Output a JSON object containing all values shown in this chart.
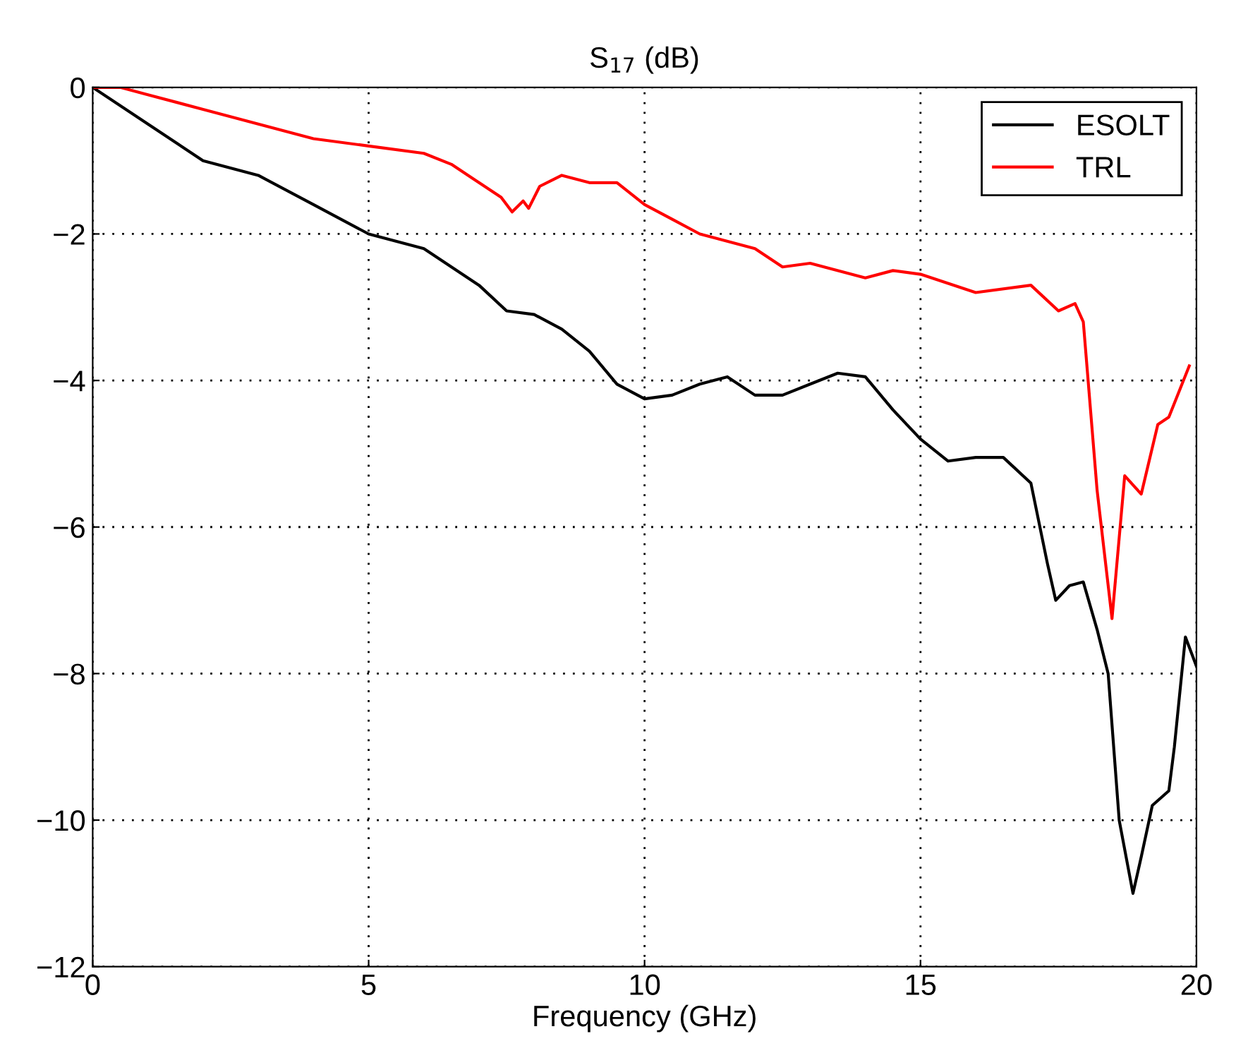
{
  "chart_data": {
    "type": "line",
    "title": "S$_{17}$ (dB)",
    "xlabel": "Frequency (GHz)",
    "xlim": [
      0,
      20
    ],
    "xticks": [
      0,
      5,
      10,
      15,
      20
    ],
    "ylim": [
      -12,
      0
    ],
    "yticks": [
      -12,
      -10,
      -8,
      -6,
      -4,
      -2,
      0
    ],
    "grid": true,
    "legend": "top right",
    "line_style": "solid",
    "marker": "none",
    "series": [
      {
        "name": "ESOLT",
        "color": "#000000",
        "x": [
          0,
          1,
          2,
          3,
          4,
          5,
          6,
          7,
          7.5,
          8,
          8.5,
          9,
          9.5,
          10,
          10.5,
          11,
          11.5,
          12,
          12.5,
          13,
          13.5,
          14,
          14.5,
          15,
          15.5,
          16,
          16.5,
          17,
          17.3,
          17.45,
          17.7,
          17.95,
          18.2,
          18.4,
          18.6,
          18.85,
          19.0,
          19.2,
          19.5,
          19.6,
          19.8,
          20
        ],
        "values": [
          0,
          -0.5,
          -1.0,
          -1.2,
          -1.6,
          -2.0,
          -2.2,
          -2.7,
          -3.05,
          -3.1,
          -3.3,
          -3.6,
          -4.05,
          -4.25,
          -4.2,
          -4.05,
          -3.95,
          -4.2,
          -4.2,
          -4.05,
          -3.9,
          -3.95,
          -4.4,
          -4.8,
          -5.1,
          -5.05,
          -5.05,
          -5.4,
          -6.5,
          -7.0,
          -6.8,
          -6.75,
          -7.4,
          -8.0,
          -10.0,
          -11.0,
          -10.5,
          -9.8,
          -9.6,
          -9.0,
          -7.5,
          -7.9
        ]
      },
      {
        "name": "TRL",
        "color": "#ff0000",
        "x": [
          0,
          0.5,
          1,
          2,
          3,
          4,
          5,
          6,
          6.5,
          7,
          7.4,
          7.6,
          7.8,
          7.9,
          8.1,
          8.5,
          9,
          9.5,
          10,
          10.5,
          11,
          12,
          12.5,
          13,
          14,
          14.5,
          15,
          16,
          17,
          17.5,
          17.8,
          17.95,
          18.2,
          18.47,
          18.7,
          19.0,
          19.3,
          19.5,
          19.87
        ],
        "values": [
          0,
          0,
          -0.1,
          -0.3,
          -0.5,
          -0.7,
          -0.8,
          -0.9,
          -1.05,
          -1.3,
          -1.5,
          -1.7,
          -1.55,
          -1.65,
          -1.35,
          -1.2,
          -1.3,
          -1.3,
          -1.6,
          -1.8,
          -2.0,
          -2.2,
          -2.45,
          -2.4,
          -2.6,
          -2.5,
          -2.55,
          -2.8,
          -2.7,
          -3.05,
          -2.95,
          -3.2,
          -5.5,
          -7.25,
          -5.3,
          -5.55,
          -4.6,
          -4.5,
          -3.8
        ]
      }
    ]
  }
}
